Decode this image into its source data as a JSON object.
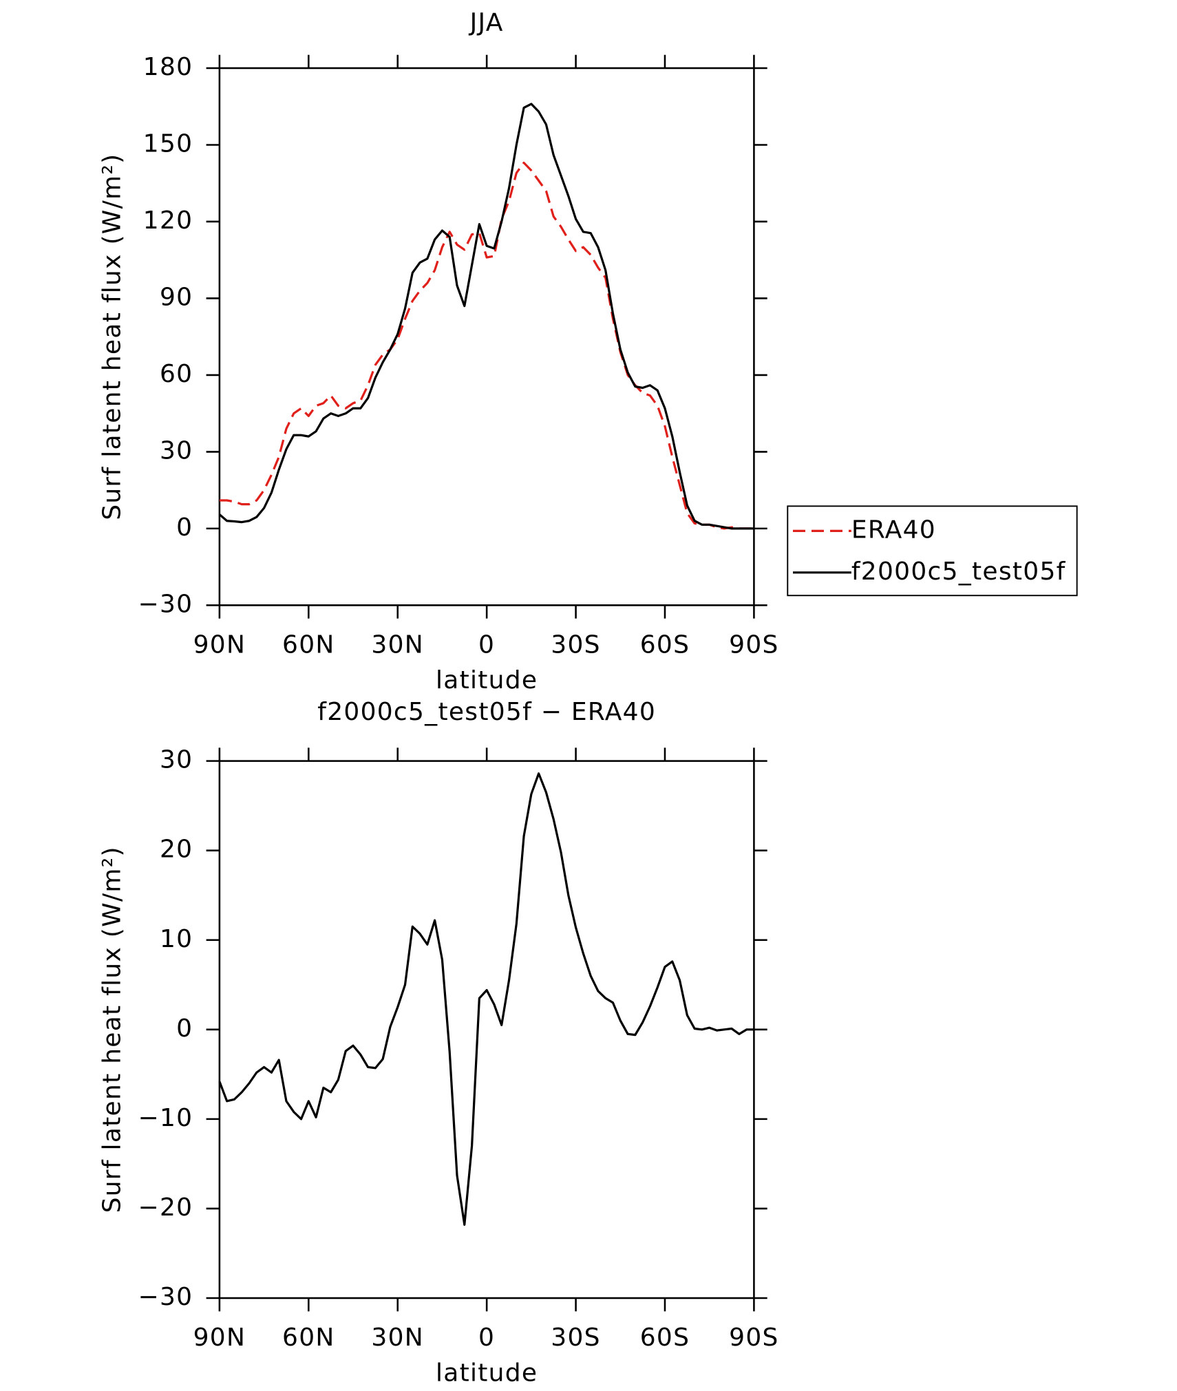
{
  "chart_data": [
    {
      "type": "line",
      "title": "JJA",
      "xlabel": "latitude",
      "ylabel": "Surf latent heat flux (W/m²)",
      "x": [
        90,
        87.5,
        85,
        82.5,
        80,
        77.5,
        75,
        72.5,
        70,
        67.5,
        65,
        62.5,
        60,
        57.5,
        55,
        52.5,
        50,
        47.5,
        45,
        42.5,
        40,
        37.5,
        35,
        32.5,
        30,
        27.5,
        25,
        22.5,
        20,
        17.5,
        15,
        12.5,
        10,
        7.5,
        5,
        2.5,
        0,
        -2.5,
        -5,
        -7.5,
        -10,
        -12.5,
        -15,
        -17.5,
        -20,
        -22.5,
        -25,
        -27.5,
        -30,
        -32.5,
        -35,
        -37.5,
        -40,
        -42.5,
        -45,
        -47.5,
        -50,
        -52.5,
        -55,
        -57.5,
        -60,
        -62.5,
        -65,
        -67.5,
        -70,
        -72.5,
        -75,
        -77.5,
        -80,
        -82.5,
        -85,
        -87.5,
        -90
      ],
      "series": [
        {
          "name": "ERA40",
          "color": "#e0201b",
          "style": "dashed",
          "values": [
            11,
            11,
            10.5,
            9.5,
            9.5,
            11,
            15,
            21,
            28,
            39,
            45,
            47,
            44,
            48,
            49,
            52,
            48,
            47,
            49,
            50,
            56,
            64,
            68,
            70,
            74,
            82,
            89,
            93,
            96,
            101,
            110,
            116,
            111,
            109,
            115,
            115.5,
            106,
            106.5,
            121,
            128,
            139,
            143,
            140,
            136,
            132,
            122,
            118,
            113,
            108.5,
            110,
            107,
            102,
            98,
            82,
            69,
            60,
            56,
            53,
            52,
            48,
            40,
            28,
            17,
            6,
            2,
            1.5,
            1.5,
            0.5,
            0,
            0.5,
            0,
            0,
            0
          ]
        },
        {
          "name": "f2000c5_test05f",
          "color": "#000000",
          "style": "solid",
          "values": [
            5.5,
            3,
            2.8,
            2.5,
            3,
            4.5,
            8,
            14,
            23,
            31,
            36.5,
            36.5,
            36,
            38,
            43,
            45,
            44,
            45,
            47,
            47,
            51,
            59,
            65,
            70,
            76,
            86,
            100,
            104,
            105.5,
            113,
            116.5,
            114,
            95,
            87,
            103,
            119,
            110.5,
            109.5,
            120,
            133,
            150,
            164.5,
            166,
            163,
            158,
            146,
            138,
            130,
            121,
            116,
            115.5,
            110,
            101,
            84,
            70,
            61,
            55.5,
            55,
            56,
            54,
            47,
            36,
            22,
            9,
            3,
            1.5,
            1.5,
            1,
            0.5,
            0,
            0,
            0,
            0
          ]
        }
      ],
      "xlim": [
        90,
        -90
      ],
      "xticks": [
        {
          "value": 90,
          "label": "90N"
        },
        {
          "value": 60,
          "label": "60N"
        },
        {
          "value": 30,
          "label": "30N"
        },
        0,
        {
          "value": -30,
          "label": "30S"
        },
        {
          "value": -60,
          "label": "60S"
        },
        {
          "value": -90,
          "label": "90S"
        }
      ],
      "ylim": [
        -30,
        180
      ],
      "yticks": [
        {
          "value": -30,
          "label": "−30"
        },
        0,
        30,
        60,
        90,
        120,
        150,
        180
      ],
      "legend": "right"
    },
    {
      "type": "line",
      "title": "f2000c5_test05f − ERA40",
      "xlabel": "latitude",
      "ylabel": "Surf latent heat flux (W/m²)",
      "x": [
        90,
        87.5,
        85,
        82.5,
        80,
        77.5,
        75,
        72.5,
        70,
        67.5,
        65,
        62.5,
        60,
        57.5,
        55,
        52.5,
        50,
        47.5,
        45,
        42.5,
        40,
        37.5,
        35,
        32.5,
        30,
        27.5,
        25,
        22.5,
        20,
        17.5,
        15,
        12.5,
        10,
        7.5,
        5,
        2.5,
        0,
        -2.5,
        -5,
        -7.5,
        -10,
        -12.5,
        -15,
        -17.5,
        -20,
        -22.5,
        -25,
        -27.5,
        -30,
        -32.5,
        -35,
        -37.5,
        -40,
        -42.5,
        -45,
        -47.5,
        -50,
        -52.5,
        -55,
        -57.5,
        -60,
        -62.5,
        -65,
        -67.5,
        -70,
        -72.5,
        -75,
        -77.5,
        -80,
        -82.5,
        -85,
        -87.5,
        -90
      ],
      "series": [
        {
          "color": "#000000",
          "style": "solid",
          "values": [
            -5.8,
            -8,
            -7.8,
            -7,
            -6,
            -4.8,
            -4.2,
            -4.8,
            -3.4,
            -8,
            -9.2,
            -10,
            -8,
            -9.8,
            -6.5,
            -7,
            -5.6,
            -2.4,
            -1.8,
            -2.8,
            -4.2,
            -4.3,
            -3.3,
            0.3,
            2.5,
            5,
            11.5,
            10.7,
            9.5,
            12.2,
            7.8,
            -2.5,
            -16.3,
            -21.8,
            -13,
            3.5,
            4.4,
            2.8,
            0.5,
            5.5,
            11.8,
            21.6,
            26.3,
            28.6,
            26.5,
            23.5,
            19.8,
            15,
            11.4,
            8.5,
            6,
            4.3,
            3.5,
            3,
            1,
            -0.5,
            -0.6,
            0.8,
            2.6,
            4.7,
            7,
            7.6,
            5.5,
            1.6,
            0.1,
            0,
            0.2,
            -0.1,
            0,
            0.1,
            -0.5,
            0,
            0
          ]
        }
      ],
      "xlim": [
        90,
        -90
      ],
      "xticks": [
        {
          "value": 90,
          "label": "90N"
        },
        {
          "value": 60,
          "label": "60N"
        },
        {
          "value": 30,
          "label": "30N"
        },
        0,
        {
          "value": -30,
          "label": "30S"
        },
        {
          "value": -60,
          "label": "60S"
        },
        {
          "value": -90,
          "label": "90S"
        }
      ],
      "ylim": [
        -30,
        30
      ],
      "yticks": [
        {
          "value": -30,
          "label": "−30"
        },
        {
          "value": -20,
          "label": "−20"
        },
        {
          "value": -10,
          "label": "−10"
        },
        0,
        10,
        20,
        30
      ]
    }
  ]
}
